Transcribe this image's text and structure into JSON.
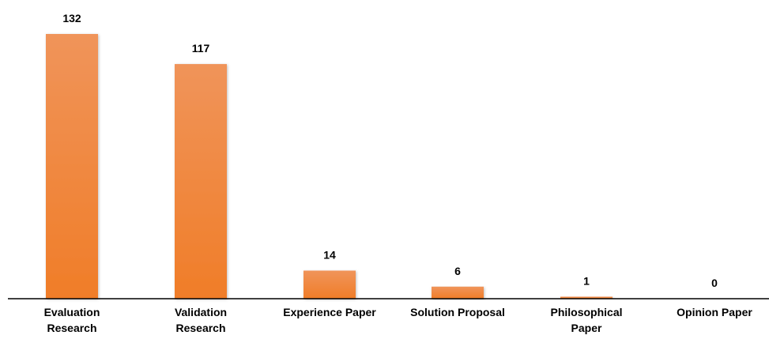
{
  "chart_data": {
    "type": "bar",
    "categories": [
      [
        "Evaluation",
        "Research"
      ],
      [
        "Validation",
        "Research"
      ],
      [
        "Experience Paper"
      ],
      [
        "Solution Proposal"
      ],
      [
        "Philosophical",
        "Paper"
      ],
      [
        "Opinion Paper"
      ]
    ],
    "values": [
      132,
      117,
      14,
      6,
      1,
      0
    ],
    "value_labels": [
      "132",
      "117",
      "14",
      "6",
      "1",
      "0"
    ],
    "ylim": [
      0,
      132
    ],
    "grid": false,
    "legend": "none",
    "bar_color_top": "#f0945a",
    "bar_color_bottom": "#f07d28",
    "axis_color": "#000000"
  }
}
